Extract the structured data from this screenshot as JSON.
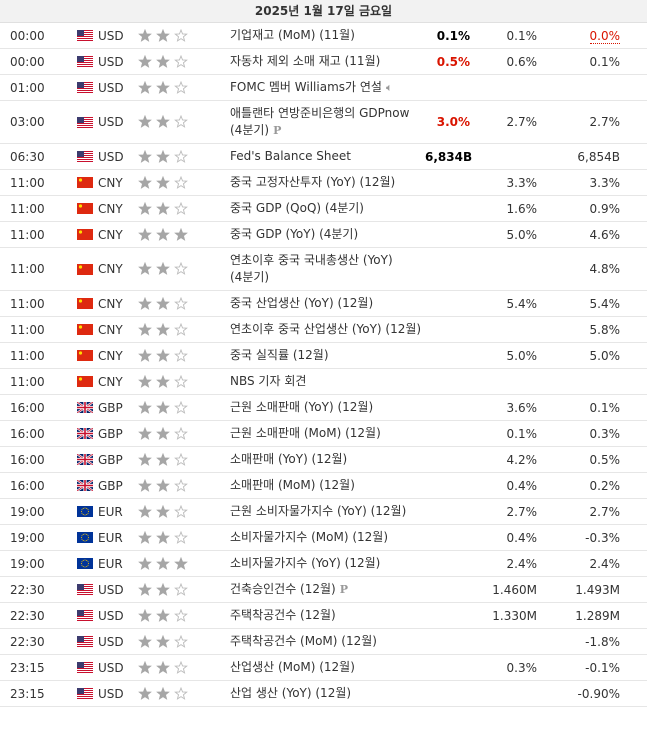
{
  "header": {
    "date": "2025년 1월 17일 금요일"
  },
  "table": {
    "rows": [
      {
        "time": "00:00",
        "currency": "USD",
        "importance": 2,
        "event": "기업재고 (MoM) (11월)",
        "actual": "0.1%",
        "actual_color": "#000000",
        "forecast": "0.1%",
        "previous": "0.0%",
        "previous_color": "#d91400"
      },
      {
        "time": "00:00",
        "currency": "USD",
        "importance": 2,
        "event": "자동차 제외 소매 재고 (11월)",
        "actual": "0.5%",
        "actual_color": "#d91400",
        "forecast": "0.6%",
        "previous": "0.1%"
      },
      {
        "time": "01:00",
        "currency": "USD",
        "importance": 2,
        "event": "FOMC 멤버 Williams가 연설",
        "icon": "speech"
      },
      {
        "time": "03:00",
        "currency": "USD",
        "importance": 2,
        "event": "애틀랜타 연방준비은행의 GDPnow (4분기)",
        "icon": "prelim",
        "actual": "3.0%",
        "actual_color": "#d91400",
        "forecast": "2.7%",
        "previous": "2.7%"
      },
      {
        "time": "06:30",
        "currency": "USD",
        "importance": 2,
        "event": "Fed's Balance Sheet",
        "actual": "6,834B",
        "actual_color": "#000000",
        "previous": "6,854B"
      },
      {
        "time": "11:00",
        "currency": "CNY",
        "importance": 2,
        "event": "중국 고정자산투자 (YoY) (12월)",
        "forecast": "3.3%",
        "previous": "3.3%"
      },
      {
        "time": "11:00",
        "currency": "CNY",
        "importance": 2,
        "event": "중국 GDP (QoQ) (4분기)",
        "forecast": "1.6%",
        "previous": "0.9%"
      },
      {
        "time": "11:00",
        "currency": "CNY",
        "importance": 3,
        "event": "중국 GDP (YoY) (4분기)",
        "forecast": "5.0%",
        "previous": "4.6%"
      },
      {
        "time": "11:00",
        "currency": "CNY",
        "importance": 2,
        "event": "연초이후 중국 국내총생산 (YoY) (4분기)",
        "previous": "4.8%"
      },
      {
        "time": "11:00",
        "currency": "CNY",
        "importance": 2,
        "event": "중국 산업생산 (YoY) (12월)",
        "forecast": "5.4%",
        "previous": "5.4%"
      },
      {
        "time": "11:00",
        "currency": "CNY",
        "importance": 2,
        "event": "연초이후 중국 산업생산 (YoY) (12월)",
        "previous": "5.8%"
      },
      {
        "time": "11:00",
        "currency": "CNY",
        "importance": 2,
        "event": "중국 실직률 (12월)",
        "forecast": "5.0%",
        "previous": "5.0%"
      },
      {
        "time": "11:00",
        "currency": "CNY",
        "importance": 2,
        "event": "NBS 기자 회견"
      },
      {
        "time": "16:00",
        "currency": "GBP",
        "importance": 2,
        "event": "근원 소매판매 (YoY) (12월)",
        "forecast": "3.6%",
        "previous": "0.1%"
      },
      {
        "time": "16:00",
        "currency": "GBP",
        "importance": 2,
        "event": "근원 소매판매 (MoM) (12월)",
        "forecast": "0.1%",
        "previous": "0.3%"
      },
      {
        "time": "16:00",
        "currency": "GBP",
        "importance": 2,
        "event": "소매판매 (YoY) (12월)",
        "forecast": "4.2%",
        "previous": "0.5%"
      },
      {
        "time": "16:00",
        "currency": "GBP",
        "importance": 2,
        "event": "소매판매 (MoM) (12월)",
        "forecast": "0.4%",
        "previous": "0.2%"
      },
      {
        "time": "19:00",
        "currency": "EUR",
        "importance": 2,
        "event": "근원 소비자물가지수 (YoY) (12월)",
        "forecast": "2.7%",
        "previous": "2.7%"
      },
      {
        "time": "19:00",
        "currency": "EUR",
        "importance": 2,
        "event": "소비자물가지수 (MoM) (12월)",
        "forecast": "0.4%",
        "previous": "-0.3%"
      },
      {
        "time": "19:00",
        "currency": "EUR",
        "importance": 3,
        "event": "소비자물가지수 (YoY) (12월)",
        "forecast": "2.4%",
        "previous": "2.4%"
      },
      {
        "time": "22:30",
        "currency": "USD",
        "importance": 2,
        "event": "건축승인건수 (12월)",
        "icon": "prelim",
        "forecast": "1.460M",
        "previous": "1.493M"
      },
      {
        "time": "22:30",
        "currency": "USD",
        "importance": 2,
        "event": "주택착공건수 (12월)",
        "forecast": "1.330M",
        "previous": "1.289M"
      },
      {
        "time": "22:30",
        "currency": "USD",
        "importance": 2,
        "event": "주택착공건수 (MoM) (12월)",
        "previous": "-1.8%"
      },
      {
        "time": "23:15",
        "currency": "USD",
        "importance": 2,
        "event": "산업생산 (MoM) (12월)",
        "forecast": "0.3%",
        "previous": "-0.1%"
      },
      {
        "time": "23:15",
        "currency": "USD",
        "importance": 2,
        "event": "산업 생산 (YoY) (12월)",
        "previous": "-0.90%"
      }
    ]
  }
}
